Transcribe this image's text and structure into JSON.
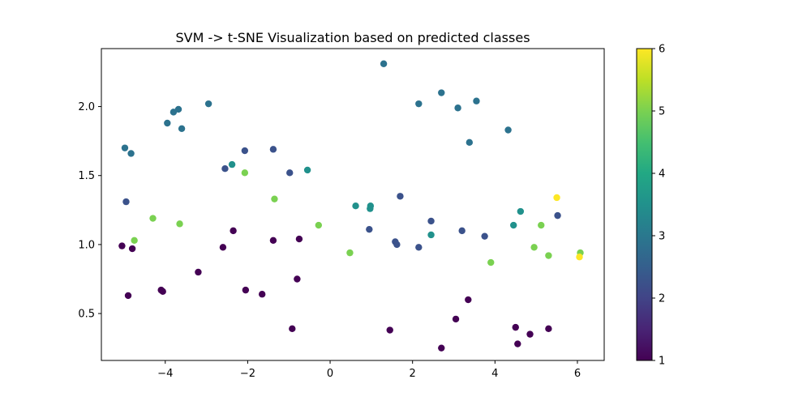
{
  "chart_data": {
    "type": "scatter",
    "title": "SVM -> t-SNE Visualization based on predicted classes",
    "xlabel": "",
    "ylabel": "",
    "xlim": [
      -5.55,
      6.65
    ],
    "ylim": [
      0.16,
      2.42
    ],
    "x_ticks": [
      -4,
      -2,
      0,
      2,
      4,
      6
    ],
    "x_tick_labels": [
      "−4",
      "−2",
      "0",
      "2",
      "4",
      "6"
    ],
    "y_ticks": [
      0.5,
      1.0,
      1.5,
      2.0
    ],
    "y_tick_labels": [
      "0.5",
      "1.0",
      "1.5",
      "2.0"
    ],
    "grid": false,
    "colormap": "viridis",
    "colorbar": {
      "min": 1,
      "max": 6,
      "ticks": [
        1,
        2,
        3,
        4,
        5,
        6
      ],
      "tick_labels": [
        "1",
        "2",
        "3",
        "4",
        "5",
        "6"
      ]
    },
    "class_colors": {
      "1": "#440154",
      "2": "#3b528b",
      "3": "#2c728e",
      "4": "#21918c",
      "5": "#7ad151",
      "6": "#fde725"
    },
    "points": [
      {
        "x": -5.05,
        "y": 0.99,
        "c": 1
      },
      {
        "x": -4.9,
        "y": 0.63,
        "c": 1
      },
      {
        "x": -4.8,
        "y": 0.97,
        "c": 1
      },
      {
        "x": -4.1,
        "y": 0.67,
        "c": 1
      },
      {
        "x": -4.06,
        "y": 0.66,
        "c": 1
      },
      {
        "x": -3.2,
        "y": 0.8,
        "c": 1
      },
      {
        "x": -2.6,
        "y": 0.98,
        "c": 1
      },
      {
        "x": -2.35,
        "y": 1.1,
        "c": 1
      },
      {
        "x": -2.05,
        "y": 0.67,
        "c": 1
      },
      {
        "x": -1.65,
        "y": 0.64,
        "c": 1
      },
      {
        "x": -1.38,
        "y": 1.03,
        "c": 1
      },
      {
        "x": -0.8,
        "y": 0.75,
        "c": 1
      },
      {
        "x": -0.75,
        "y": 1.04,
        "c": 1
      },
      {
        "x": -0.92,
        "y": 0.39,
        "c": 1
      },
      {
        "x": 1.45,
        "y": 0.38,
        "c": 1
      },
      {
        "x": 2.7,
        "y": 0.25,
        "c": 1
      },
      {
        "x": 3.05,
        "y": 0.46,
        "c": 1
      },
      {
        "x": 3.35,
        "y": 0.6,
        "c": 1
      },
      {
        "x": 4.5,
        "y": 0.4,
        "c": 1
      },
      {
        "x": 4.55,
        "y": 0.28,
        "c": 1
      },
      {
        "x": 4.85,
        "y": 0.35,
        "c": 1
      },
      {
        "x": 5.3,
        "y": 0.39,
        "c": 1
      },
      {
        "x": -4.95,
        "y": 1.31,
        "c": 2
      },
      {
        "x": -2.55,
        "y": 1.55,
        "c": 2
      },
      {
        "x": -2.07,
        "y": 1.68,
        "c": 2
      },
      {
        "x": -1.38,
        "y": 1.69,
        "c": 2
      },
      {
        "x": -0.98,
        "y": 1.52,
        "c": 2
      },
      {
        "x": 0.95,
        "y": 1.11,
        "c": 2
      },
      {
        "x": 1.58,
        "y": 1.02,
        "c": 2
      },
      {
        "x": 1.62,
        "y": 1.0,
        "c": 2
      },
      {
        "x": 1.7,
        "y": 1.35,
        "c": 2
      },
      {
        "x": 2.15,
        "y": 0.98,
        "c": 2
      },
      {
        "x": 2.45,
        "y": 1.17,
        "c": 2
      },
      {
        "x": 3.2,
        "y": 1.1,
        "c": 2
      },
      {
        "x": 3.75,
        "y": 1.06,
        "c": 2
      },
      {
        "x": 5.52,
        "y": 1.21,
        "c": 2
      },
      {
        "x": -4.98,
        "y": 1.7,
        "c": 3
      },
      {
        "x": -4.83,
        "y": 1.66,
        "c": 3
      },
      {
        "x": -3.95,
        "y": 1.88,
        "c": 3
      },
      {
        "x": -3.8,
        "y": 1.96,
        "c": 3
      },
      {
        "x": -3.68,
        "y": 1.98,
        "c": 3
      },
      {
        "x": -3.6,
        "y": 1.84,
        "c": 3
      },
      {
        "x": -2.95,
        "y": 2.02,
        "c": 3
      },
      {
        "x": 1.3,
        "y": 2.31,
        "c": 3
      },
      {
        "x": 2.15,
        "y": 2.02,
        "c": 3
      },
      {
        "x": 2.7,
        "y": 2.1,
        "c": 3
      },
      {
        "x": 3.1,
        "y": 1.99,
        "c": 3
      },
      {
        "x": 3.38,
        "y": 1.74,
        "c": 3
      },
      {
        "x": 3.55,
        "y": 2.04,
        "c": 3
      },
      {
        "x": 4.32,
        "y": 1.83,
        "c": 3
      },
      {
        "x": -2.38,
        "y": 1.58,
        "c": 4
      },
      {
        "x": -0.55,
        "y": 1.54,
        "c": 4
      },
      {
        "x": 0.62,
        "y": 1.28,
        "c": 4
      },
      {
        "x": 0.98,
        "y": 1.28,
        "c": 4
      },
      {
        "x": 0.97,
        "y": 1.26,
        "c": 4
      },
      {
        "x": 2.45,
        "y": 1.07,
        "c": 4
      },
      {
        "x": 4.45,
        "y": 1.14,
        "c": 4
      },
      {
        "x": 4.62,
        "y": 1.24,
        "c": 4
      },
      {
        "x": -4.75,
        "y": 1.03,
        "c": 5
      },
      {
        "x": -4.3,
        "y": 1.19,
        "c": 5
      },
      {
        "x": -3.65,
        "y": 1.15,
        "c": 5
      },
      {
        "x": -2.07,
        "y": 1.52,
        "c": 5
      },
      {
        "x": -1.35,
        "y": 1.33,
        "c": 5
      },
      {
        "x": -0.28,
        "y": 1.14,
        "c": 5
      },
      {
        "x": 0.48,
        "y": 0.94,
        "c": 5
      },
      {
        "x": 3.9,
        "y": 0.87,
        "c": 5
      },
      {
        "x": 4.95,
        "y": 0.98,
        "c": 5
      },
      {
        "x": 5.12,
        "y": 1.14,
        "c": 5
      },
      {
        "x": 5.3,
        "y": 0.92,
        "c": 5
      },
      {
        "x": 6.07,
        "y": 0.94,
        "c": 5
      },
      {
        "x": 5.5,
        "y": 1.34,
        "c": 6
      },
      {
        "x": 6.05,
        "y": 0.91,
        "c": 6
      }
    ]
  }
}
